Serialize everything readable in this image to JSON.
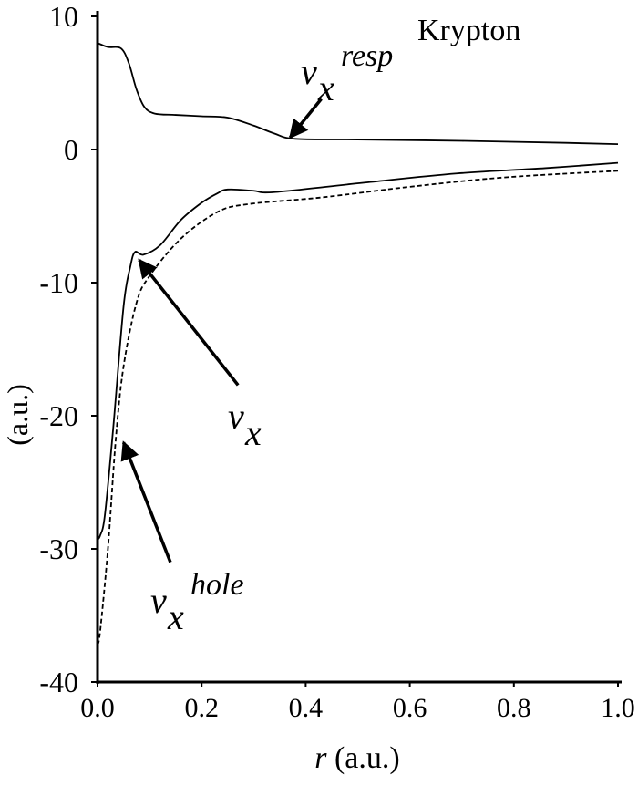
{
  "chart_data": {
    "type": "line",
    "title": "Krypton",
    "xlabel_var": "r",
    "xlabel_unit": "(a.u.)",
    "ylabel": "(a.u.)",
    "xlim": [
      0.0,
      1.0
    ],
    "ylim": [
      -40,
      10
    ],
    "xticks": [
      0.0,
      0.2,
      0.4,
      0.6,
      0.8,
      1.0
    ],
    "xtick_labels": [
      "0.0",
      "0.2",
      "0.4",
      "0.6",
      "0.8",
      "1.0"
    ],
    "yticks": [
      10,
      0,
      -10,
      -20,
      -30,
      -40
    ],
    "ytick_labels": [
      "10",
      "0",
      "-10",
      "-20",
      "-30",
      "-40"
    ],
    "grid": false,
    "series": [
      {
        "name": "v_x^resp",
        "label_base": "v",
        "label_sub": "x",
        "label_sup": "resp",
        "style": "solid",
        "x": [
          0.0,
          0.02,
          0.045,
          0.06,
          0.075,
          0.09,
          0.11,
          0.15,
          0.2,
          0.25,
          0.3,
          0.34,
          0.38,
          0.5,
          0.7,
          0.9,
          1.0
        ],
        "y": [
          8.0,
          7.7,
          7.6,
          6.5,
          4.5,
          3.2,
          2.7,
          2.6,
          2.5,
          2.4,
          1.8,
          1.2,
          0.8,
          0.75,
          0.65,
          0.5,
          0.4
        ]
      },
      {
        "name": "v_x",
        "label_base": "v",
        "label_sub": "x",
        "label_sup": "",
        "style": "solid",
        "x": [
          0.0,
          0.005,
          0.014,
          0.03,
          0.05,
          0.063,
          0.072,
          0.088,
          0.12,
          0.16,
          0.2,
          0.23,
          0.25,
          0.3,
          0.34,
          0.51,
          0.69,
          0.86,
          1.0
        ],
        "y": [
          -29.3,
          -29.0,
          -27.5,
          -21.0,
          -11.8,
          -8.8,
          -7.7,
          -7.9,
          -7.2,
          -5.3,
          -4.0,
          -3.3,
          -3.0,
          -3.1,
          -3.2,
          -2.5,
          -1.8,
          -1.4,
          -1.0
        ]
      },
      {
        "name": "v_x^hole",
        "label_base": "v",
        "label_sub": "x",
        "label_sup": "hole",
        "style": "dashed",
        "x": [
          0.0,
          0.005,
          0.02,
          0.035,
          0.05,
          0.075,
          0.1,
          0.16,
          0.23,
          0.29,
          0.43,
          0.6,
          0.78,
          1.0
        ],
        "y": [
          -37.2,
          -36.2,
          -30.0,
          -21.8,
          -16.3,
          -11.5,
          -9.5,
          -6.7,
          -4.7,
          -4.1,
          -3.6,
          -2.8,
          -2.1,
          -1.6
        ]
      }
    ],
    "annotations": [
      {
        "series": 0,
        "arrow_from": [
          0.43,
          3.8
        ],
        "arrow_to": [
          0.37,
          0.9
        ]
      },
      {
        "series": 1,
        "arrow_from": [
          0.27,
          -17.7
        ],
        "arrow_to": [
          0.08,
          -8.3
        ]
      },
      {
        "series": 2,
        "arrow_from": [
          0.14,
          -31.0
        ],
        "arrow_to": [
          0.05,
          -22.0
        ]
      }
    ]
  }
}
